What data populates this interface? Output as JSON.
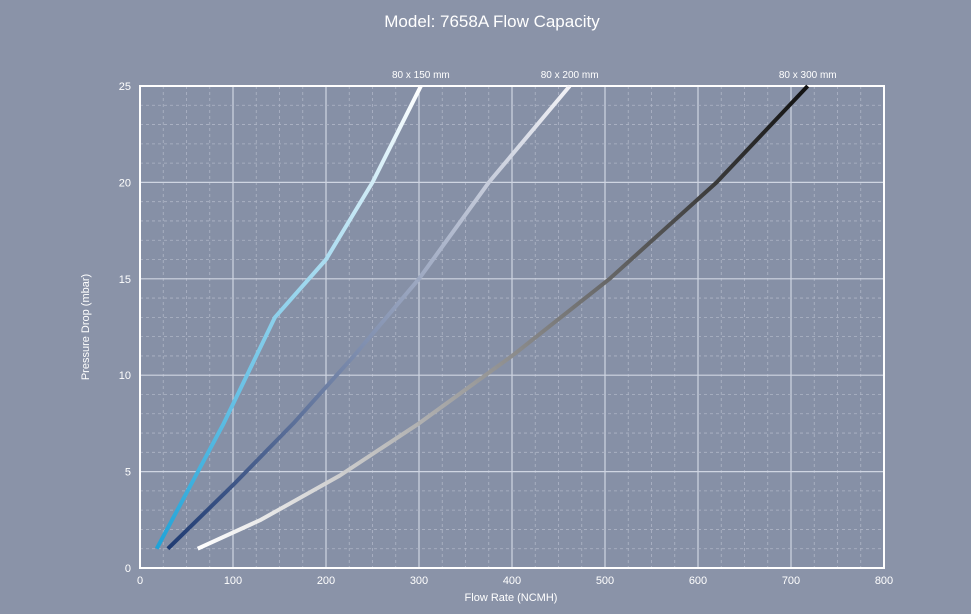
{
  "colors": {
    "background": "#8a93a8",
    "plot_fill": "#8690a6",
    "grid_major": "#cfd5e2",
    "grid_minor": "#aeb5c6"
  },
  "chart_data": {
    "type": "line",
    "title": "Model: 7658A Flow Capacity",
    "xlabel": "Flow Rate (NCMH)",
    "ylabel": "Pressure Drop (mbar)",
    "xlim": [
      0,
      800
    ],
    "ylim": [
      0,
      25
    ],
    "x_ticks": [
      "0",
      "100",
      "200",
      "300",
      "400",
      "500",
      "600",
      "700",
      "800"
    ],
    "y_ticks": [
      "0",
      "5",
      "10",
      "15",
      "20",
      "25"
    ],
    "grid": true,
    "series": [
      {
        "name": "80 x 150 mm",
        "color_start": "#1fa3d8",
        "color_end": "#ffffff",
        "points": [
          [
            18,
            1
          ],
          [
            90,
            7.5
          ],
          [
            145,
            13
          ],
          [
            200,
            16
          ],
          [
            250,
            20
          ],
          [
            302,
            25
          ]
        ]
      },
      {
        "name": "80 x 200 mm",
        "color_start": "#1f3b73",
        "color_end": "#f2f2f6",
        "points": [
          [
            30,
            1
          ],
          [
            100,
            4.3
          ],
          [
            165,
            7.5
          ],
          [
            230,
            11
          ],
          [
            300,
            15
          ],
          [
            375,
            20
          ],
          [
            462,
            25
          ]
        ]
      },
      {
        "name": "80 x 300 mm",
        "color_start": "#ffffff",
        "color_end": "#111111",
        "points": [
          [
            62,
            1
          ],
          [
            130,
            2.5
          ],
          [
            215,
            4.8
          ],
          [
            300,
            7.5
          ],
          [
            400,
            11
          ],
          [
            505,
            15
          ],
          [
            620,
            20
          ],
          [
            718,
            25
          ]
        ]
      }
    ]
  }
}
